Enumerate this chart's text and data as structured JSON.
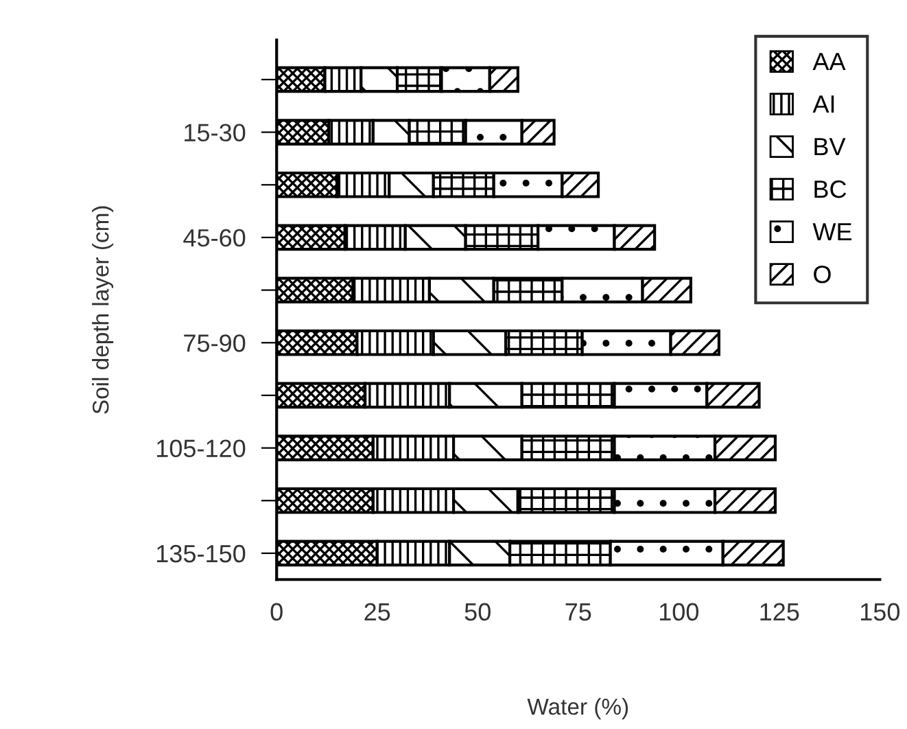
{
  "chart_data": {
    "type": "bar",
    "orientation": "horizontal",
    "stacked": true,
    "categories": [
      null,
      "15-30",
      null,
      "45-60",
      null,
      "75-90",
      null,
      "105-120",
      null,
      "135-150"
    ],
    "series": [
      {
        "name": "AA",
        "color": "#000000",
        "values": [
          12,
          13,
          15,
          17,
          19,
          20,
          22,
          24,
          24,
          25
        ]
      },
      {
        "name": "AI",
        "color": "#000000",
        "values": [
          9,
          11,
          13,
          15,
          19,
          19,
          21,
          20,
          20,
          18
        ]
      },
      {
        "name": "BV",
        "color": "#000000",
        "values": [
          9,
          9,
          11,
          15,
          16,
          18,
          18,
          17,
          16,
          15
        ]
      },
      {
        "name": "BC",
        "color": "#000000",
        "values": [
          11,
          14,
          15,
          18,
          17,
          19,
          23,
          23,
          24,
          25
        ]
      },
      {
        "name": "WE",
        "color": "#000000",
        "values": [
          12,
          14,
          17,
          19,
          20,
          22,
          23,
          25,
          25,
          28
        ]
      },
      {
        "name": "O",
        "color": "#000000",
        "values": [
          7,
          8,
          9,
          10,
          12,
          12,
          13,
          15,
          15,
          15
        ]
      }
    ],
    "xlim": [
      0,
      150
    ],
    "xticks": [
      0,
      25,
      50,
      75,
      100,
      125,
      150
    ],
    "xlabel": "Water (%)",
    "ylabel": "Soil depth layer (cm)",
    "legend": "top right",
    "grid": false
  }
}
